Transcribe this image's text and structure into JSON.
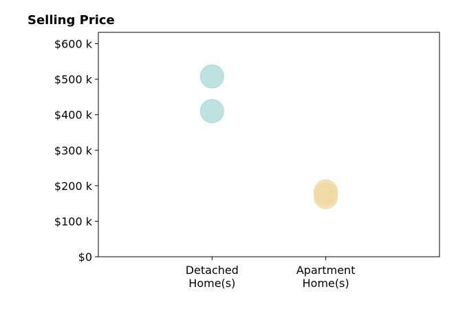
{
  "chart_data": {
    "type": "scatter",
    "title": "Selling Price",
    "xlabel": "",
    "ylabel": "",
    "categories": [
      [
        "Detached",
        "Home(s)"
      ],
      [
        "Apartment",
        "Home(s)"
      ]
    ],
    "y_ticks": [
      {
        "value": 0,
        "label": "$0"
      },
      {
        "value": 100,
        "label": "$100 k"
      },
      {
        "value": 200,
        "label": "$200 k"
      },
      {
        "value": 300,
        "label": "$300 k"
      },
      {
        "value": 400,
        "label": "$400 k"
      },
      {
        "value": 500,
        "label": "$500 k"
      },
      {
        "value": 600,
        "label": "$600 k"
      }
    ],
    "ylim": [
      0,
      632
    ],
    "xlim": [
      0,
      3
    ],
    "grid": false,
    "points": [
      {
        "category_index": 0,
        "y": 508,
        "color": "#a7d8d4"
      },
      {
        "category_index": 0,
        "y": 410,
        "color": "#a7d8d4"
      },
      {
        "category_index": 1,
        "y": 184,
        "color": "#f0d9a4"
      },
      {
        "category_index": 1,
        "y": 168,
        "color": "#f0d9a4"
      },
      {
        "category_index": 1,
        "y": 177,
        "color": "#f0d9a4"
      }
    ]
  }
}
